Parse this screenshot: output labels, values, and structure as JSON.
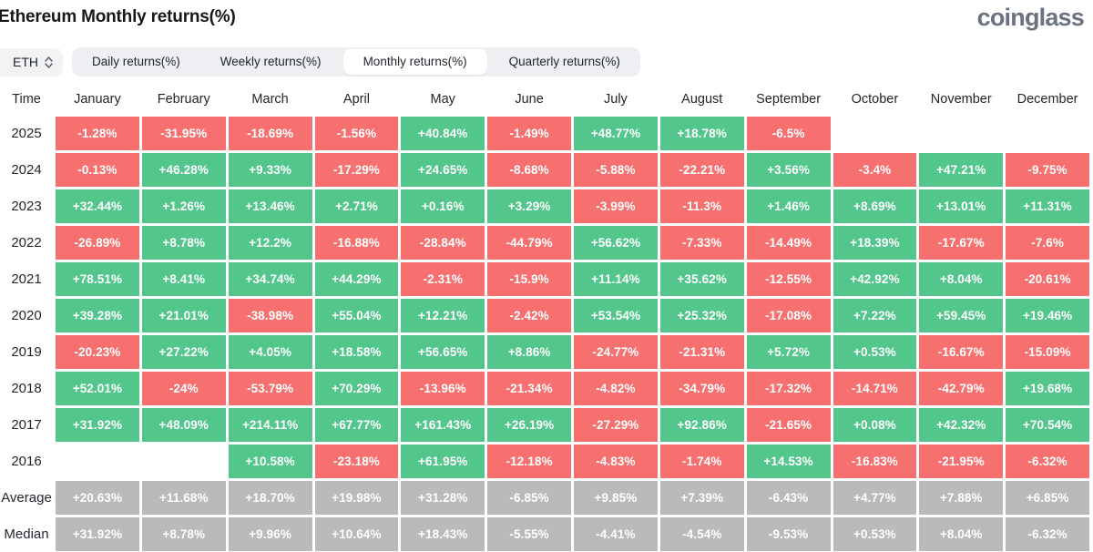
{
  "page": {
    "title": "Ethereum Monthly returns(%)",
    "brand": "coinglass"
  },
  "controls": {
    "symbol_select": {
      "value": "ETH"
    },
    "tabs": [
      {
        "label": "Daily returns(%)",
        "active": false
      },
      {
        "label": "Weekly returns(%)",
        "active": false
      },
      {
        "label": "Monthly returns(%)",
        "active": true
      },
      {
        "label": "Quarterly returns(%)",
        "active": false
      }
    ]
  },
  "colors": {
    "positive": "#53c68c",
    "negative": "#f67070",
    "neutral": "#bababa"
  },
  "chart_data": {
    "type": "table",
    "title": "Ethereum Monthly returns(%)",
    "time_header": "Time",
    "columns": [
      "January",
      "February",
      "March",
      "April",
      "May",
      "June",
      "July",
      "August",
      "September",
      "October",
      "November",
      "December"
    ],
    "rows": [
      {
        "label": "2025",
        "kind": "year",
        "values": [
          "-1.28%",
          "-31.95%",
          "-18.69%",
          "-1.56%",
          "+40.84%",
          "-1.49%",
          "+48.77%",
          "+18.78%",
          "-6.5%",
          "",
          "",
          ""
        ]
      },
      {
        "label": "2024",
        "kind": "year",
        "values": [
          "-0.13%",
          "+46.28%",
          "+9.33%",
          "-17.29%",
          "+24.65%",
          "-8.68%",
          "-5.88%",
          "-22.21%",
          "+3.56%",
          "-3.4%",
          "+47.21%",
          "-9.75%"
        ]
      },
      {
        "label": "2023",
        "kind": "year",
        "values": [
          "+32.44%",
          "+1.26%",
          "+13.46%",
          "+2.71%",
          "+0.16%",
          "+3.29%",
          "-3.99%",
          "-11.3%",
          "+1.46%",
          "+8.69%",
          "+13.01%",
          "+11.31%"
        ]
      },
      {
        "label": "2022",
        "kind": "year",
        "values": [
          "-26.89%",
          "+8.78%",
          "+12.2%",
          "-16.88%",
          "-28.84%",
          "-44.79%",
          "+56.62%",
          "-7.33%",
          "-14.49%",
          "+18.39%",
          "-17.67%",
          "-7.6%"
        ]
      },
      {
        "label": "2021",
        "kind": "year",
        "values": [
          "+78.51%",
          "+8.41%",
          "+34.74%",
          "+44.29%",
          "-2.31%",
          "-15.9%",
          "+11.14%",
          "+35.62%",
          "-12.55%",
          "+42.92%",
          "+8.04%",
          "-20.61%"
        ]
      },
      {
        "label": "2020",
        "kind": "year",
        "values": [
          "+39.28%",
          "+21.01%",
          "-38.98%",
          "+55.04%",
          "+12.21%",
          "-2.42%",
          "+53.54%",
          "+25.32%",
          "-17.08%",
          "+7.22%",
          "+59.45%",
          "+19.46%"
        ]
      },
      {
        "label": "2019",
        "kind": "year",
        "values": [
          "-20.23%",
          "+27.22%",
          "+4.05%",
          "+18.58%",
          "+56.65%",
          "+8.86%",
          "-24.77%",
          "-21.31%",
          "+5.72%",
          "+0.53%",
          "-16.67%",
          "-15.09%"
        ]
      },
      {
        "label": "2018",
        "kind": "year",
        "values": [
          "+52.01%",
          "-24%",
          "-53.79%",
          "+70.29%",
          "-13.96%",
          "-21.34%",
          "-4.82%",
          "-34.79%",
          "-17.32%",
          "-14.71%",
          "-42.79%",
          "+19.68%"
        ]
      },
      {
        "label": "2017",
        "kind": "year",
        "values": [
          "+31.92%",
          "+48.09%",
          "+214.11%",
          "+67.77%",
          "+161.43%",
          "+26.19%",
          "-27.29%",
          "+92.86%",
          "-21.65%",
          "+0.08%",
          "+42.32%",
          "+70.54%"
        ]
      },
      {
        "label": "2016",
        "kind": "year",
        "values": [
          "",
          "",
          "+10.58%",
          "-23.18%",
          "+61.95%",
          "-12.18%",
          "-4.83%",
          "-1.74%",
          "+14.53%",
          "-16.83%",
          "-21.95%",
          "-6.32%"
        ]
      },
      {
        "label": "Average",
        "kind": "summary",
        "values": [
          "+20.63%",
          "+11.68%",
          "+18.70%",
          "+19.98%",
          "+31.28%",
          "-6.85%",
          "+9.85%",
          "+7.39%",
          "-6.43%",
          "+4.77%",
          "+7.88%",
          "+6.85%"
        ]
      },
      {
        "label": "Median",
        "kind": "summary",
        "values": [
          "+31.92%",
          "+8.78%",
          "+9.96%",
          "+10.64%",
          "+18.43%",
          "-5.55%",
          "-4.41%",
          "-4.54%",
          "-9.53%",
          "+0.53%",
          "+8.04%",
          "-6.32%"
        ]
      }
    ]
  }
}
